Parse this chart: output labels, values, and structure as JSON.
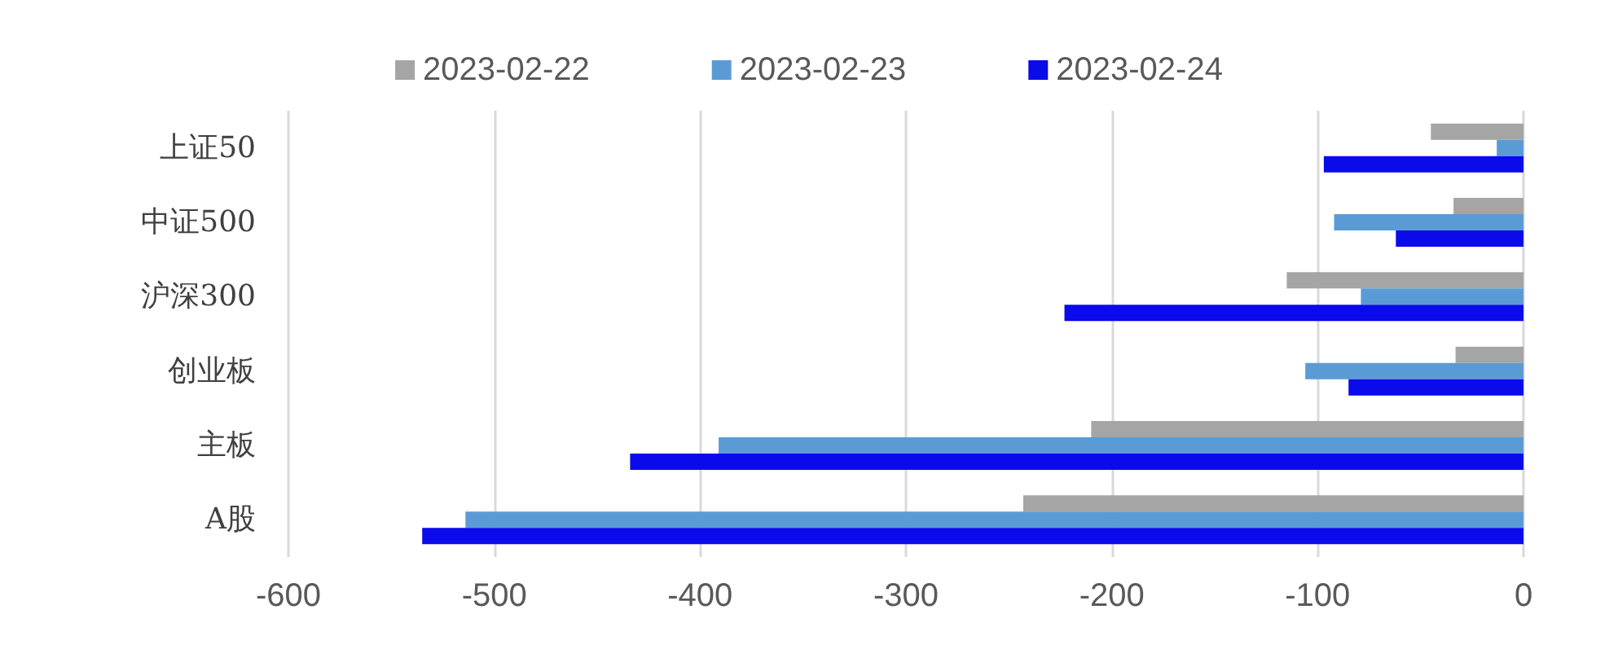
{
  "chart_data": {
    "type": "bar",
    "orientation": "horizontal",
    "categories": [
      "上证50",
      "中证500",
      "沪深300",
      "创业板",
      "主板",
      "A股"
    ],
    "series": [
      {
        "name": "2023-02-22",
        "color": "#a5a5a5",
        "values": [
          -45,
          -34,
          -115,
          -33,
          -210,
          -243
        ]
      },
      {
        "name": "2023-02-23",
        "color": "#5b9bd5",
        "values": [
          -13,
          -92,
          -79,
          -106,
          -391,
          -514
        ]
      },
      {
        "name": "2023-02-24",
        "color": "#0a0aeb",
        "values": [
          -97,
          -62,
          -223,
          -85,
          -434,
          -535
        ]
      }
    ],
    "xlim": [
      -600,
      0
    ],
    "xticks": [
      -600,
      -500,
      -400,
      -300,
      -200,
      -100,
      0
    ],
    "grid": "x",
    "legend": "top"
  }
}
